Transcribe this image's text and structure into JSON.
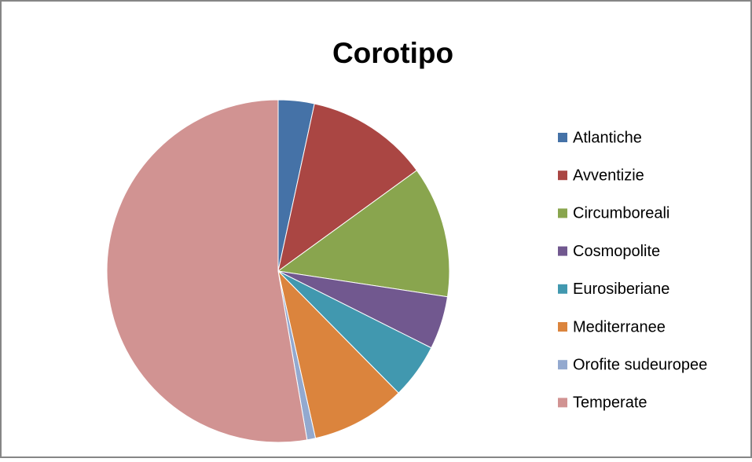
{
  "chart_data": {
    "type": "pie",
    "title": "Corotipo",
    "series": [
      {
        "name": "Atlantiche",
        "color": "#4572a7",
        "values": [
          3.4
        ]
      },
      {
        "name": "Avventizie",
        "color": "#aa4643",
        "values": [
          11.6
        ]
      },
      {
        "name": "Circumboreali",
        "color": "#89a54e",
        "values": [
          12.4
        ]
      },
      {
        "name": "Cosmopolite",
        "color": "#71588f",
        "values": [
          5.0
        ]
      },
      {
        "name": "Eurosiberiane",
        "color": "#4198af",
        "values": [
          5.2
        ]
      },
      {
        "name": "Mediterranee",
        "color": "#db843d",
        "values": [
          8.9
        ]
      },
      {
        "name": "Orofite sudeuropee",
        "color": "#93a9cf",
        "values": [
          0.8
        ]
      },
      {
        "name": "Temperate",
        "color": "#d19392",
        "values": [
          52.7
        ]
      }
    ],
    "legend": "right"
  }
}
